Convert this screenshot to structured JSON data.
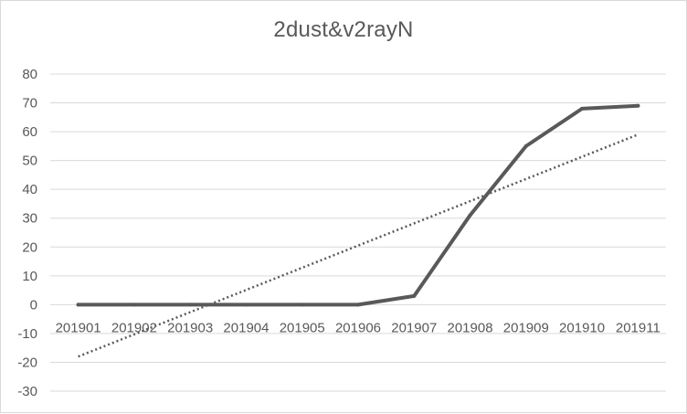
{
  "chart_data": {
    "type": "line",
    "title": "2dust&v2rayN",
    "categories": [
      "201901",
      "201902",
      "201903",
      "201904",
      "201905",
      "201906",
      "201907",
      "201908",
      "201909",
      "201910",
      "201911"
    ],
    "series": [
      {
        "values": [
          0,
          0,
          0,
          0,
          0,
          0,
          3,
          31,
          55,
          68,
          69
        ]
      }
    ],
    "trendline": {
      "type": "linear",
      "start": -18,
      "end": 59,
      "style": "dotted"
    },
    "ylim": [
      -30,
      80
    ],
    "yticks": [
      -30,
      -20,
      -10,
      0,
      10,
      20,
      30,
      40,
      50,
      60,
      70,
      80
    ],
    "grid": true,
    "legend": "none",
    "colors": {
      "series": "#595959",
      "grid": "#d9d9d9",
      "text": "#595959"
    }
  }
}
